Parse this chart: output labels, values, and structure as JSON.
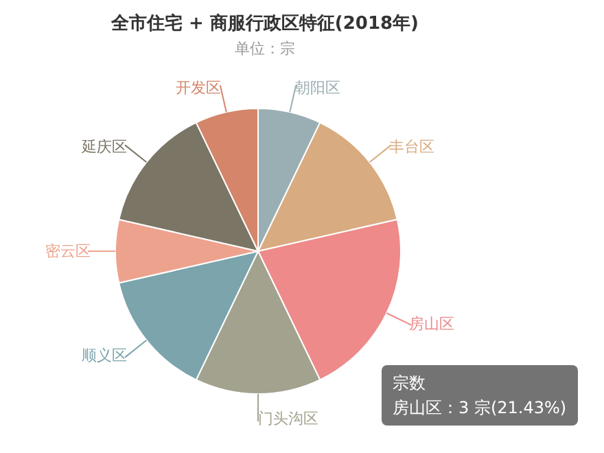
{
  "chart_data": {
    "type": "pie",
    "title": "全市住宅 + 商服行政区特征(2018年)",
    "subtitle": "单位：宗",
    "categories": [
      "朝阳区",
      "丰台区",
      "房山区",
      "门头沟区",
      "顺义区",
      "密云区",
      "延庆区",
      "开发区"
    ],
    "values": [
      7.14,
      14.29,
      21.43,
      14.28,
      14.29,
      7.14,
      14.29,
      7.14
    ],
    "colors": [
      "#9aafb3",
      "#d9ab80",
      "#ee8a8a",
      "#a3a28e",
      "#7ba4ad",
      "#eda28e",
      "#7b7565",
      "#d4856a"
    ],
    "annotations": [
      "宗数",
      "房山区：3 宗(21.43%)"
    ]
  }
}
